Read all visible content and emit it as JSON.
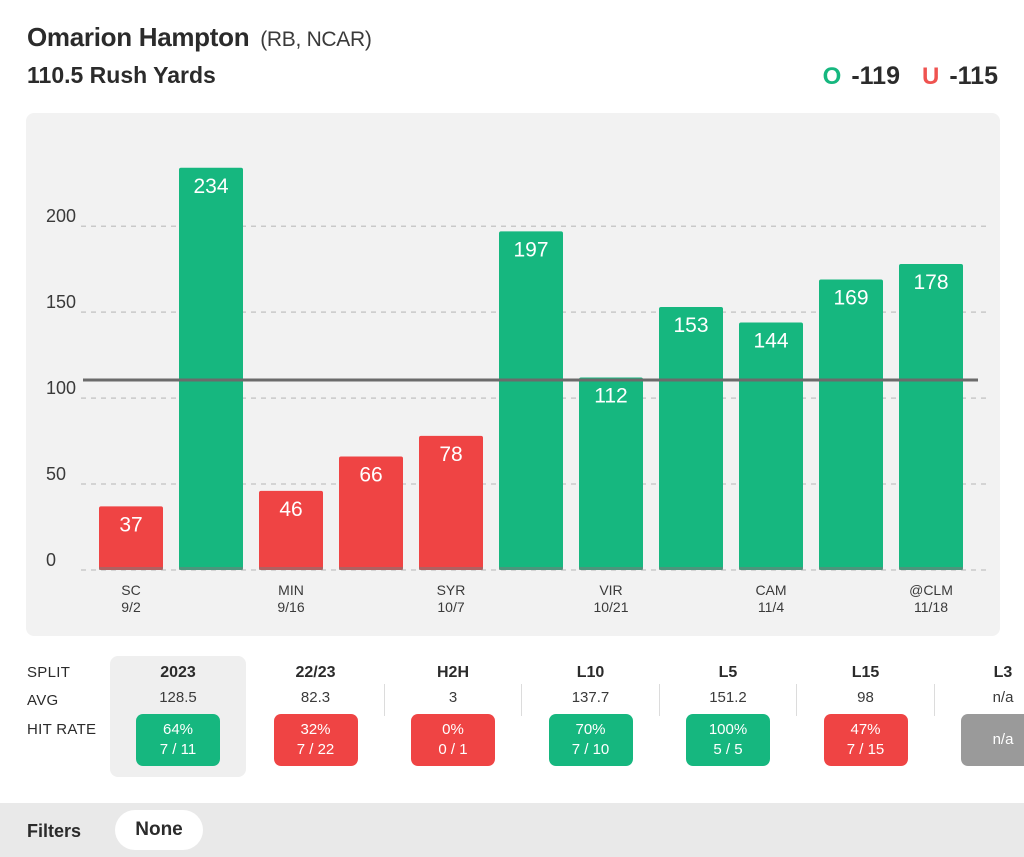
{
  "header": {
    "player_name": "Omarion Hampton",
    "player_meta": "(RB, NCAR)",
    "prop_line": "110.5 Rush Yards",
    "over_label": "O",
    "over_odds": "-119",
    "under_label": "U",
    "under_odds": "-115"
  },
  "chart_data": {
    "type": "bar",
    "title": "110.5 Rush Yards",
    "categories": [
      "SC 9/2",
      "",
      "MIN 9/16",
      "",
      "SYR 10/7",
      "",
      "VIR 10/21",
      "",
      "CAM 11/4",
      "",
      "@CLM 11/18"
    ],
    "tick_labels": [
      {
        "team": "SC",
        "date": "9/2"
      },
      {
        "team": "",
        "date": ""
      },
      {
        "team": "MIN",
        "date": "9/16"
      },
      {
        "team": "",
        "date": ""
      },
      {
        "team": "SYR",
        "date": "10/7"
      },
      {
        "team": "",
        "date": ""
      },
      {
        "team": "VIR",
        "date": "10/21"
      },
      {
        "team": "",
        "date": ""
      },
      {
        "team": "CAM",
        "date": "11/4"
      },
      {
        "team": "",
        "date": ""
      },
      {
        "team": "@CLM",
        "date": "11/18"
      }
    ],
    "values": [
      37,
      234,
      46,
      66,
      78,
      197,
      112,
      153,
      144,
      169,
      178
    ],
    "line_value": 110.5,
    "yticks": [
      0,
      50,
      100,
      150,
      200
    ],
    "ylim": [
      0,
      250
    ],
    "grid": true,
    "xlabel": "",
    "ylabel": ""
  },
  "colors": {
    "over": "#16b77f",
    "under": "#ef4444",
    "neutral": "#9a9a9a",
    "panel": "#f2f2f2",
    "line": "#6b6b6b"
  },
  "splits": {
    "row_labels": {
      "split": "SPLIT",
      "avg": "AVG",
      "hit_rate": "HIT RATE"
    },
    "columns": [
      {
        "name": "2023",
        "avg": "128.5",
        "pct": "64%",
        "ratio": "7 / 11",
        "status": "green",
        "active": true
      },
      {
        "name": "22/23",
        "avg": "82.3",
        "pct": "32%",
        "ratio": "7 / 22",
        "status": "red",
        "active": false
      },
      {
        "name": "H2H",
        "avg": "3",
        "pct": "0%",
        "ratio": "0 / 1",
        "status": "red",
        "active": false
      },
      {
        "name": "L10",
        "avg": "137.7",
        "pct": "70%",
        "ratio": "7 / 10",
        "status": "green",
        "active": false
      },
      {
        "name": "L5",
        "avg": "151.2",
        "pct": "100%",
        "ratio": "5 / 5",
        "status": "green",
        "active": false
      },
      {
        "name": "L15",
        "avg": "98",
        "pct": "47%",
        "ratio": "7 / 15",
        "status": "red",
        "active": false
      },
      {
        "name": "L3",
        "avg": "n/a",
        "pct": "n/a",
        "ratio": "",
        "status": "gray",
        "active": false
      }
    ]
  },
  "footer": {
    "filters_label": "Filters",
    "filter_value": "None"
  }
}
